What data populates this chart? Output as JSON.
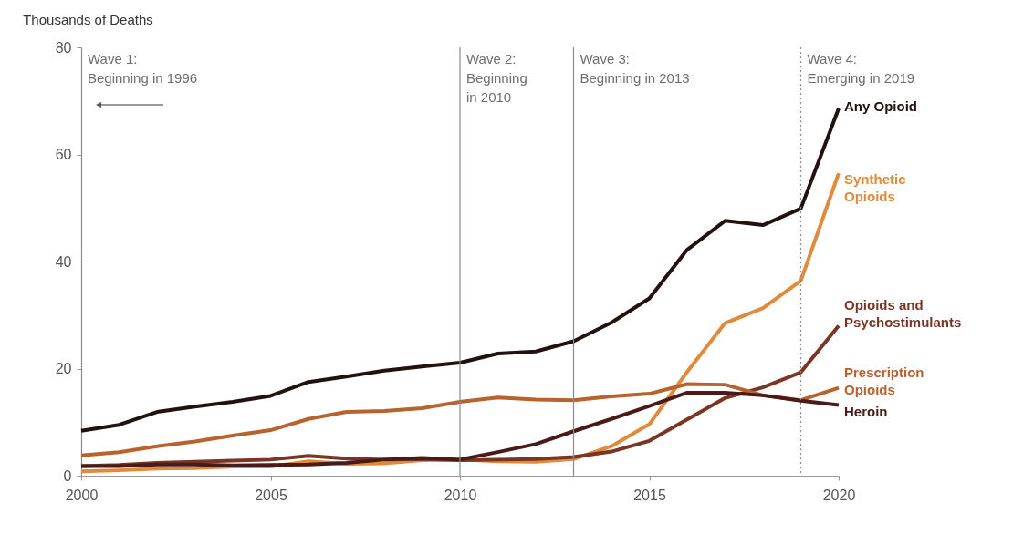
{
  "chart_data": {
    "type": "line",
    "ylabel": "Thousands of Deaths",
    "x": [
      2000,
      2001,
      2002,
      2003,
      2004,
      2005,
      2006,
      2007,
      2008,
      2009,
      2010,
      2011,
      2012,
      2013,
      2014,
      2015,
      2016,
      2017,
      2018,
      2019,
      2020
    ],
    "series": [
      {
        "name": "Any Opioid",
        "color": "#231010",
        "values": [
          8.4,
          9.5,
          11.9,
          12.9,
          13.8,
          14.9,
          17.5,
          18.5,
          19.6,
          20.4,
          21.1,
          22.8,
          23.2,
          25.1,
          28.6,
          33.1,
          42.2,
          47.6,
          46.8,
          49.9,
          68.6
        ]
      },
      {
        "name": "Synthetic\nOpioids",
        "color": "#e08a3c",
        "values": [
          0.8,
          1.0,
          1.3,
          1.4,
          1.7,
          1.7,
          2.7,
          2.2,
          2.3,
          2.9,
          3.0,
          2.7,
          2.6,
          3.1,
          5.5,
          9.6,
          19.4,
          28.5,
          31.3,
          36.4,
          56.5
        ]
      },
      {
        "name": "Opioids and\nPsychostimulants",
        "color": "#7a3525",
        "values": [
          1.8,
          2.0,
          2.4,
          2.6,
          2.8,
          3.0,
          3.7,
          3.2,
          3.0,
          3.1,
          2.9,
          3.0,
          3.1,
          3.5,
          4.5,
          6.5,
          10.5,
          14.5,
          16.5,
          19.3,
          28.0
        ]
      },
      {
        "name": "Prescription\nOpioids",
        "color": "#b8622e",
        "values": [
          3.8,
          4.4,
          5.5,
          6.4,
          7.5,
          8.5,
          10.6,
          11.9,
          12.1,
          12.6,
          13.8,
          14.6,
          14.2,
          14.1,
          14.8,
          15.3,
          17.1,
          17.0,
          15.0,
          14.1,
          16.4
        ]
      },
      {
        "name": "Heroin",
        "color": "#4a1a18",
        "values": [
          1.8,
          1.8,
          2.1,
          2.1,
          1.9,
          2.0,
          2.1,
          2.4,
          3.0,
          3.3,
          3.0,
          4.4,
          5.9,
          8.3,
          10.6,
          13.0,
          15.5,
          15.5,
          15.0,
          14.0,
          13.2
        ]
      }
    ],
    "xlim": [
      2000,
      2020
    ],
    "xticks": [
      2000,
      2005,
      2010,
      2015,
      2020
    ],
    "ylim": [
      0,
      80
    ],
    "yticks": [
      0,
      20,
      40,
      60,
      80
    ],
    "grid": false,
    "line_style": "solid",
    "annotations": [
      "Wave 1:\nBeginning in 1996"
    ],
    "ref_lines": [
      {
        "axis": "x",
        "value": 2010,
        "label": "Wave 2:\nBeginning\nin 2010",
        "color": "#8c8c8c",
        "line_style": "solid"
      },
      {
        "axis": "x",
        "value": 2013,
        "label": "Wave 3:\nBeginning in 2013",
        "color": "#8c8c8c",
        "line_style": "solid"
      },
      {
        "axis": "x",
        "value": 2019,
        "label": "Wave 4:\nEmerging in 2019",
        "color": "#8c8c8c",
        "line_style": "dotted"
      }
    ]
  }
}
